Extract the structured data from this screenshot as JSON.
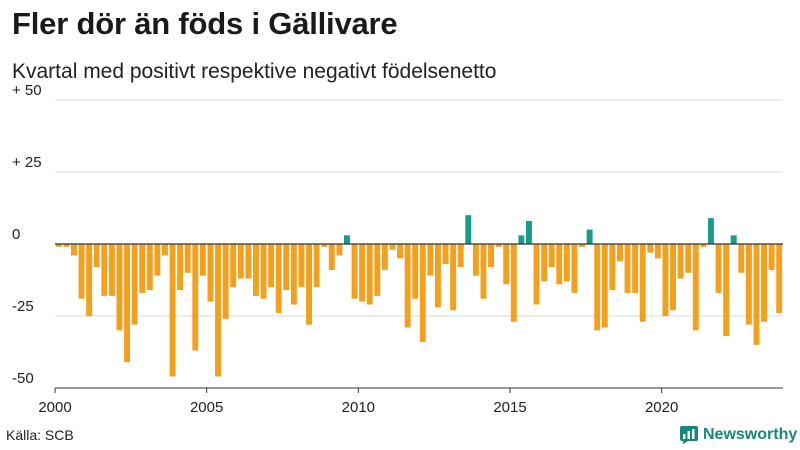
{
  "header": {
    "title": "Fler dör än föds i Gällivare",
    "subtitle": "Kvartal med positivt respektive negativt födelsenetto"
  },
  "footer": {
    "source": "Källa: SCB",
    "brand": "Newsworthy"
  },
  "colors": {
    "positive": "#1a9a8a",
    "negative": "#f5a01d",
    "grid": "#d9d9d9",
    "zero_line": "#333333",
    "brand": "#17877a"
  },
  "chart_data": {
    "type": "bar",
    "title": "Fler dör än föds i Gällivare",
    "subtitle": "Kvartal med positivt respektive negativt födelsenetto",
    "xlabel": "",
    "ylabel": "",
    "ylim": [
      -50,
      50
    ],
    "yticks": [
      50,
      25,
      0,
      -25,
      -50
    ],
    "ytick_labels": [
      "+ 50",
      "+ 25",
      "0",
      "-25",
      "-50"
    ],
    "xticks": [
      {
        "label": "2000",
        "index": 0
      },
      {
        "label": "2005",
        "index": 20
      },
      {
        "label": "2010",
        "index": 40
      },
      {
        "label": "2015",
        "index": 60
      },
      {
        "label": "2020",
        "index": 80
      }
    ],
    "grid": true,
    "start": "2000 Q1",
    "values": [
      -1,
      -1,
      -4,
      -19,
      -25,
      -8,
      -18,
      -18,
      -30,
      -41,
      -28,
      -17,
      -16,
      -11,
      -4,
      -46,
      -16,
      -10,
      -37,
      -11,
      -20,
      -46,
      -26,
      -15,
      -12,
      -12,
      -18,
      -19,
      -15,
      -24,
      -16,
      -21,
      -15,
      -28,
      -15,
      -1,
      -9,
      -4,
      3,
      -19,
      -20,
      -21,
      -18,
      -9,
      -2,
      -5,
      -29,
      -19,
      -34,
      -11,
      -22,
      -7,
      -23,
      -8,
      10,
      -11,
      -19,
      -8,
      -1,
      -14,
      -27,
      3,
      8,
      -21,
      -13,
      -8,
      -14,
      -13,
      -17,
      -1,
      5,
      -30,
      -29,
      -16,
      -6,
      -17,
      -17,
      -27,
      -3,
      -5,
      -25,
      -23,
      -12,
      -10,
      -30,
      -1,
      9,
      -17,
      -32,
      3,
      -10,
      -28,
      -35,
      -27,
      -9,
      -24
    ]
  }
}
